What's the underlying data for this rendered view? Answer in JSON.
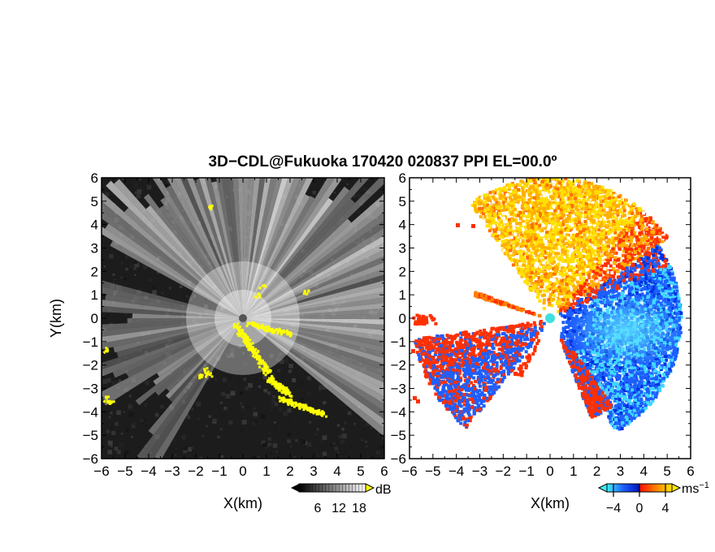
{
  "figure": {
    "title": "3D−CDL@Fukuoka 170420 020837 PPI EL=00.0º"
  },
  "chart_data": [
    {
      "type": "heatmap",
      "name": "reflectivity-ppi",
      "xlabel": "X(km)",
      "ylabel": "Y(km)",
      "xlim": [
        -6,
        6
      ],
      "ylim": [
        -6,
        6
      ],
      "xticks": [
        "−6",
        "−5",
        "−4",
        "−3",
        "−2",
        "−1",
        "0",
        "1",
        "2",
        "3",
        "4",
        "5",
        "6"
      ],
      "yticks": [
        "6",
        "5",
        "4",
        "3",
        "2",
        "1",
        "0",
        "−1",
        "−2",
        "−3",
        "−4",
        "−5",
        "−6"
      ],
      "radar_origin": [
        0,
        0
      ],
      "colorbar": {
        "unit": "dB",
        "ticks": [
          "6",
          "12",
          "18"
        ],
        "colormap": "grayscale",
        "overflow_color": "#ffff00"
      },
      "colors": {
        "background": "#1c1c1c",
        "beams": "#e8e8e8",
        "saturated": "#ffff00"
      }
    },
    {
      "type": "heatmap",
      "name": "doppler-velocity-ppi",
      "xlabel": "X(km)",
      "xlim": [
        -6,
        6
      ],
      "ylim": [
        -6,
        6
      ],
      "xticks": [
        "−6",
        "−5",
        "−4",
        "−3",
        "−2",
        "−1",
        "0",
        "1",
        "2",
        "3",
        "4",
        "5",
        "6"
      ],
      "yticks": [
        "6",
        "5",
        "4",
        "3",
        "2",
        "1",
        "0",
        "−1",
        "−2",
        "−3",
        "−4",
        "−5",
        "−6"
      ],
      "radar_origin": [
        0,
        0
      ],
      "colorbar": {
        "unit": "ms",
        "unit_exponent": "−1",
        "ticks": [
          "−4",
          "0",
          "4"
        ],
        "colormap": "cyan-blue-red-yellow",
        "range": [
          -5,
          5
        ]
      },
      "colors": {
        "approaching": "#1e5fff",
        "strong_approaching": "#40d8ff",
        "receding": "#ff3000",
        "strong_receding": "#ffe000",
        "radar_marker": "#40e0e0"
      }
    }
  ]
}
